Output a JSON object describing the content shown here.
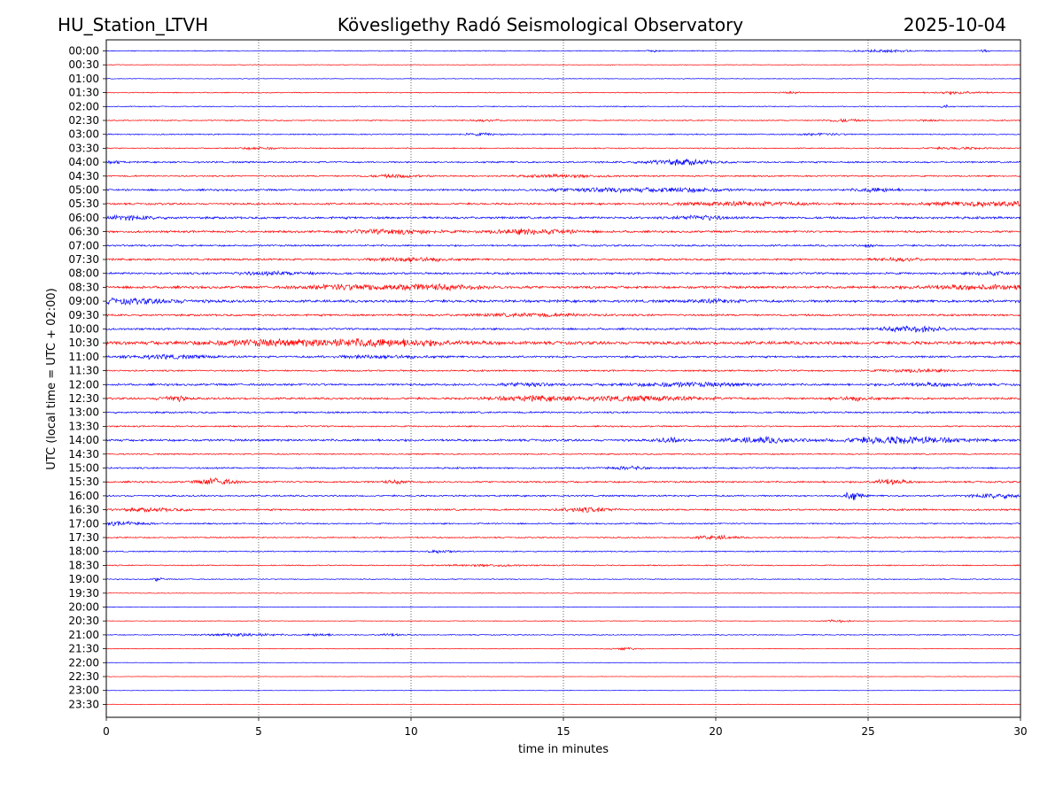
{
  "header": {
    "station": "HU_Station_LTVH",
    "observatory": "Kövesligethy Radó Seismological Observatory",
    "date": "2025-10-04"
  },
  "chart_data": {
    "type": "line",
    "title": "Kövesligethy Radó Seismological Observatory",
    "xlabel": "time in minutes",
    "ylabel": "UTC (local time = UTC + 02:00)",
    "xlim": [
      0,
      30
    ],
    "xticks": [
      0,
      5,
      10,
      15,
      20,
      25,
      30
    ],
    "xtick_labels": [
      "0",
      "5",
      "10",
      "15",
      "20",
      "25",
      "30"
    ],
    "vertical_gridlines_at": [
      5,
      10,
      15,
      20,
      25
    ],
    "trace_colors": [
      "#0000ff",
      "#ff0000"
    ],
    "colors": {
      "blue": "#0000ff",
      "red": "#ff0000"
    },
    "series": [
      {
        "name": "00:00",
        "color": "blue",
        "amplitude": 0.6,
        "bursts": [
          {
            "t": 18.0,
            "w": 0.2,
            "a": 0.8
          },
          {
            "t": 25.5,
            "w": 0.7,
            "a": 1.2
          },
          {
            "t": 28.8,
            "w": 0.1,
            "a": 1.5
          }
        ]
      },
      {
        "name": "00:30",
        "color": "red",
        "amplitude": 0.4,
        "bursts": []
      },
      {
        "name": "01:00",
        "color": "blue",
        "amplitude": 0.4,
        "bursts": []
      },
      {
        "name": "01:30",
        "color": "red",
        "amplitude": 0.6,
        "bursts": [
          {
            "t": 22.5,
            "w": 0.2,
            "a": 1.0
          },
          {
            "t": 28.0,
            "w": 0.6,
            "a": 1.5
          }
        ]
      },
      {
        "name": "02:00",
        "color": "blue",
        "amplitude": 0.6,
        "bursts": [
          {
            "t": 27.5,
            "w": 0.1,
            "a": 2.0
          }
        ]
      },
      {
        "name": "02:30",
        "color": "red",
        "amplitude": 0.7,
        "bursts": [
          {
            "t": 12.5,
            "w": 0.4,
            "a": 1.0
          },
          {
            "t": 24.2,
            "w": 0.4,
            "a": 1.5
          },
          {
            "t": 27.0,
            "w": 0.2,
            "a": 1.0
          }
        ]
      },
      {
        "name": "03:00",
        "color": "blue",
        "amplitude": 0.7,
        "bursts": [
          {
            "t": 12.3,
            "w": 0.5,
            "a": 1.2
          },
          {
            "t": 23.5,
            "w": 0.6,
            "a": 1.0
          }
        ]
      },
      {
        "name": "03:30",
        "color": "red",
        "amplitude": 0.7,
        "bursts": [
          {
            "t": 5.0,
            "w": 0.5,
            "a": 1.2
          },
          {
            "t": 28.0,
            "w": 0.8,
            "a": 1.0
          }
        ]
      },
      {
        "name": "04:00",
        "color": "blue",
        "amplitude": 1.0,
        "bursts": [
          {
            "t": 0.3,
            "w": 0.2,
            "a": 1.5
          },
          {
            "t": 18.8,
            "w": 0.8,
            "a": 3.0
          }
        ]
      },
      {
        "name": "04:30",
        "color": "red",
        "amplitude": 0.9,
        "bursts": [
          {
            "t": 9.5,
            "w": 0.6,
            "a": 1.5
          },
          {
            "t": 15.0,
            "w": 1.0,
            "a": 1.5
          }
        ]
      },
      {
        "name": "05:00",
        "color": "blue",
        "amplitude": 1.2,
        "bursts": [
          {
            "t": 16.0,
            "w": 1.0,
            "a": 2.0
          },
          {
            "t": 18.8,
            "w": 1.0,
            "a": 2.5
          },
          {
            "t": 25.3,
            "w": 0.5,
            "a": 2.0
          }
        ]
      },
      {
        "name": "05:30",
        "color": "red",
        "amplitude": 1.2,
        "bursts": [
          {
            "t": 21.0,
            "w": 1.5,
            "a": 2.0
          },
          {
            "t": 29.0,
            "w": 1.5,
            "a": 2.5
          }
        ]
      },
      {
        "name": "06:00",
        "color": "blue",
        "amplitude": 1.4,
        "bursts": [
          {
            "t": 0.5,
            "w": 0.8,
            "a": 2.0
          },
          {
            "t": 19.5,
            "w": 0.5,
            "a": 2.5
          }
        ]
      },
      {
        "name": "06:30",
        "color": "red",
        "amplitude": 1.3,
        "bursts": [
          {
            "t": 9.5,
            "w": 1.0,
            "a": 2.5
          },
          {
            "t": 14.0,
            "w": 1.0,
            "a": 2.8
          }
        ]
      },
      {
        "name": "07:00",
        "color": "blue",
        "amplitude": 1.1,
        "bursts": [
          {
            "t": 25.0,
            "w": 0.1,
            "a": 2.0
          }
        ]
      },
      {
        "name": "07:30",
        "color": "red",
        "amplitude": 1.2,
        "bursts": [
          {
            "t": 10.0,
            "w": 0.8,
            "a": 2.5
          },
          {
            "t": 26.0,
            "w": 0.6,
            "a": 1.5
          }
        ]
      },
      {
        "name": "08:00",
        "color": "blue",
        "amplitude": 1.3,
        "bursts": [
          {
            "t": 5.5,
            "w": 1.0,
            "a": 1.5
          },
          {
            "t": 29.0,
            "w": 0.4,
            "a": 2.2
          }
        ]
      },
      {
        "name": "08:30",
        "color": "red",
        "amplitude": 1.6,
        "bursts": [
          {
            "t": 8.0,
            "w": 1.0,
            "a": 2.5
          },
          {
            "t": 10.5,
            "w": 1.2,
            "a": 2.8
          },
          {
            "t": 28.5,
            "w": 1.5,
            "a": 2.0
          }
        ]
      },
      {
        "name": "09:00",
        "color": "blue",
        "amplitude": 1.6,
        "bursts": [
          {
            "t": 0.8,
            "w": 1.2,
            "a": 2.5
          },
          {
            "t": 20.0,
            "w": 0.6,
            "a": 1.5
          }
        ]
      },
      {
        "name": "09:30",
        "color": "red",
        "amplitude": 1.2,
        "bursts": [
          {
            "t": 14.0,
            "w": 1.5,
            "a": 1.5
          }
        ]
      },
      {
        "name": "10:00",
        "color": "blue",
        "amplitude": 1.2,
        "bursts": [
          {
            "t": 26.5,
            "w": 0.8,
            "a": 3.0
          }
        ]
      },
      {
        "name": "10:30",
        "color": "red",
        "amplitude": 2.0,
        "bursts": [
          {
            "t": 6.0,
            "w": 2.0,
            "a": 3.0
          },
          {
            "t": 9.5,
            "w": 1.5,
            "a": 3.0
          }
        ]
      },
      {
        "name": "11:00",
        "color": "blue",
        "amplitude": 1.2,
        "bursts": [
          {
            "t": 2.0,
            "w": 1.0,
            "a": 2.0
          },
          {
            "t": 9.0,
            "w": 1.0,
            "a": 1.8
          }
        ]
      },
      {
        "name": "11:30",
        "color": "red",
        "amplitude": 1.0,
        "bursts": [
          {
            "t": 26.5,
            "w": 0.8,
            "a": 1.5
          }
        ]
      },
      {
        "name": "12:00",
        "color": "blue",
        "amplitude": 1.3,
        "bursts": [
          {
            "t": 13.8,
            "w": 0.5,
            "a": 2.2
          },
          {
            "t": 19.0,
            "w": 1.5,
            "a": 2.0
          },
          {
            "t": 27.0,
            "w": 1.0,
            "a": 1.5
          }
        ]
      },
      {
        "name": "12:30",
        "color": "red",
        "amplitude": 1.3,
        "bursts": [
          {
            "t": 2.2,
            "w": 0.3,
            "a": 3.0
          },
          {
            "t": 14.0,
            "w": 1.0,
            "a": 2.5
          },
          {
            "t": 17.5,
            "w": 1.5,
            "a": 2.5
          },
          {
            "t": 24.5,
            "w": 0.5,
            "a": 2.0
          }
        ]
      },
      {
        "name": "13:00",
        "color": "blue",
        "amplitude": 1.1,
        "bursts": []
      },
      {
        "name": "13:30",
        "color": "red",
        "amplitude": 0.9,
        "bursts": []
      },
      {
        "name": "14:00",
        "color": "blue",
        "amplitude": 1.4,
        "bursts": [
          {
            "t": 18.5,
            "w": 0.3,
            "a": 2.5
          },
          {
            "t": 21.5,
            "w": 0.8,
            "a": 3.0
          },
          {
            "t": 25.5,
            "w": 1.0,
            "a": 3.0
          },
          {
            "t": 27.0,
            "w": 1.0,
            "a": 2.0
          }
        ]
      },
      {
        "name": "14:30",
        "color": "red",
        "amplitude": 0.8,
        "bursts": []
      },
      {
        "name": "15:00",
        "color": "blue",
        "amplitude": 1.0,
        "bursts": [
          {
            "t": 17.2,
            "w": 0.5,
            "a": 1.5
          }
        ]
      },
      {
        "name": "15:30",
        "color": "red",
        "amplitude": 1.1,
        "bursts": [
          {
            "t": 3.6,
            "w": 0.4,
            "a": 4.0
          },
          {
            "t": 9.5,
            "w": 0.3,
            "a": 1.5
          },
          {
            "t": 25.7,
            "w": 0.4,
            "a": 3.0
          }
        ]
      },
      {
        "name": "16:00",
        "color": "blue",
        "amplitude": 1.0,
        "bursts": [
          {
            "t": 24.5,
            "w": 0.2,
            "a": 5.0
          },
          {
            "t": 29.3,
            "w": 0.6,
            "a": 2.5
          }
        ]
      },
      {
        "name": "16:30",
        "color": "red",
        "amplitude": 1.1,
        "bursts": [
          {
            "t": 1.5,
            "w": 0.8,
            "a": 1.5
          },
          {
            "t": 15.8,
            "w": 0.6,
            "a": 2.5
          }
        ]
      },
      {
        "name": "17:00",
        "color": "blue",
        "amplitude": 0.9,
        "bursts": [
          {
            "t": 0.5,
            "w": 0.6,
            "a": 2.0
          }
        ]
      },
      {
        "name": "17:30",
        "color": "red",
        "amplitude": 0.8,
        "bursts": [
          {
            "t": 20.0,
            "w": 0.5,
            "a": 2.0
          }
        ]
      },
      {
        "name": "18:00",
        "color": "blue",
        "amplitude": 0.7,
        "bursts": [
          {
            "t": 11.0,
            "w": 0.3,
            "a": 1.8
          }
        ]
      },
      {
        "name": "18:30",
        "color": "red",
        "amplitude": 0.7,
        "bursts": [
          {
            "t": 12.5,
            "w": 0.8,
            "a": 1.0
          }
        ]
      },
      {
        "name": "19:00",
        "color": "blue",
        "amplitude": 0.6,
        "bursts": [
          {
            "t": 1.7,
            "w": 0.1,
            "a": 2.5
          }
        ]
      },
      {
        "name": "19:30",
        "color": "red",
        "amplitude": 0.4,
        "bursts": []
      },
      {
        "name": "20:00",
        "color": "blue",
        "amplitude": 0.4,
        "bursts": []
      },
      {
        "name": "20:30",
        "color": "red",
        "amplitude": 0.4,
        "bursts": [
          {
            "t": 24.0,
            "w": 0.3,
            "a": 1.5
          }
        ]
      },
      {
        "name": "21:00",
        "color": "blue",
        "amplitude": 0.6,
        "bursts": [
          {
            "t": 4.5,
            "w": 0.8,
            "a": 1.8
          },
          {
            "t": 7.0,
            "w": 0.3,
            "a": 1.5
          },
          {
            "t": 9.3,
            "w": 0.3,
            "a": 1.5
          }
        ]
      },
      {
        "name": "21:30",
        "color": "red",
        "amplitude": 0.4,
        "bursts": [
          {
            "t": 17.0,
            "w": 0.3,
            "a": 1.5
          }
        ]
      },
      {
        "name": "22:00",
        "color": "blue",
        "amplitude": 0.3,
        "bursts": []
      },
      {
        "name": "22:30",
        "color": "red",
        "amplitude": 0.3,
        "bursts": []
      },
      {
        "name": "23:00",
        "color": "blue",
        "amplitude": 0.3,
        "bursts": []
      },
      {
        "name": "23:30",
        "color": "red",
        "amplitude": 0.3,
        "bursts": []
      }
    ]
  }
}
